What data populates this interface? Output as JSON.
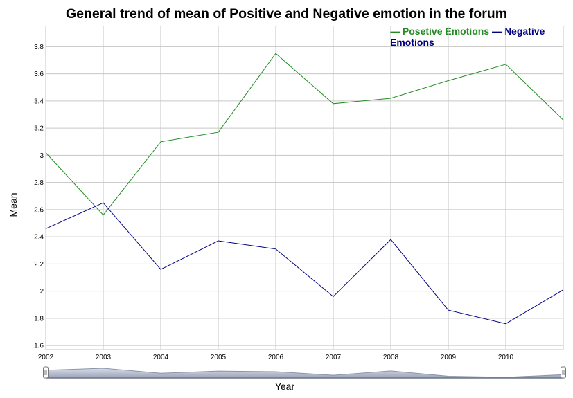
{
  "chart_data": {
    "type": "line",
    "title": "General trend of mean of Positive and Negative emotion in the forum",
    "xlabel": "Year",
    "ylabel": "Mean",
    "x": [
      "2002",
      "2003",
      "2004",
      "2005",
      "2006",
      "2007",
      "2008",
      "2009",
      "2010",
      "2011"
    ],
    "x_tick_labels": [
      "2002",
      "2003",
      "2004",
      "2005",
      "2006",
      "2007",
      "2008",
      "2009",
      "2010"
    ],
    "ylim": [
      1.57,
      3.95
    ],
    "y_ticks": [
      1.6,
      1.8,
      2.0,
      2.2,
      2.4,
      2.6,
      2.8,
      3.0,
      3.2,
      3.4,
      3.6,
      3.8
    ],
    "y_tick_labels": [
      "1.6",
      "1.8",
      "2",
      "2.2",
      "2.4",
      "2.6",
      "2.8",
      "3",
      "3.2",
      "3.4",
      "3.6",
      "3.8"
    ],
    "grid": true,
    "legend_position": "top-right",
    "series": [
      {
        "name": "Posetive Emotions",
        "color": "#228B22",
        "values": [
          3.02,
          2.56,
          3.1,
          3.17,
          3.75,
          3.38,
          3.42,
          3.55,
          3.67,
          3.26
        ]
      },
      {
        "name": "Negative Emotions",
        "color": "#000080",
        "values": [
          2.46,
          2.65,
          2.16,
          2.37,
          2.31,
          1.96,
          2.38,
          1.86,
          1.76,
          2.01
        ]
      }
    ],
    "range_selector": {
      "series_values": [
        2.46,
        2.65,
        2.16,
        2.37,
        2.31,
        1.96,
        2.38,
        1.86,
        1.76,
        2.01
      ]
    }
  }
}
